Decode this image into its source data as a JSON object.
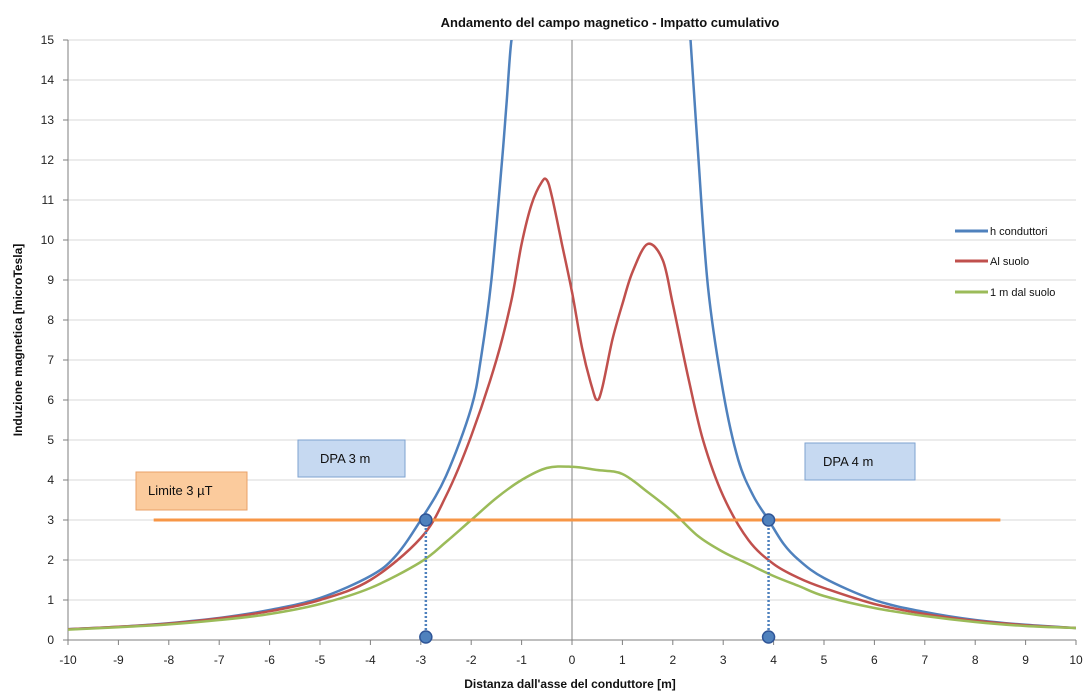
{
  "chart_data": {
    "type": "line",
    "title": "Andamento del campo magnetico  -  Impatto cumulativo",
    "xlabel": "Distanza dall'asse del conduttore [m]",
    "ylabel": "Induzione magnetica [microTesla]",
    "xlim": [
      -10,
      10
    ],
    "ylim": [
      0,
      15
    ],
    "xticks": [
      -10,
      -9,
      -8,
      -7,
      -6,
      -5,
      -4,
      -3,
      -2,
      -1,
      0,
      1,
      2,
      3,
      4,
      5,
      6,
      7,
      8,
      9,
      10
    ],
    "yticks": [
      0,
      1,
      2,
      3,
      4,
      5,
      6,
      7,
      8,
      9,
      10,
      11,
      12,
      13,
      14,
      15
    ],
    "grid": "horizontal",
    "legend_position": "right",
    "series": [
      {
        "name": "h conduttori",
        "color": "#4F81BD",
        "x": [
          -10,
          -9,
          -8,
          -7,
          -6,
          -5,
          -4,
          -3.5,
          -3,
          -2.5,
          -2,
          -1.8,
          -1.6,
          -1.4,
          -1.3,
          -1.2,
          -1.1,
          -1.0,
          -0.95,
          -0.9
        ],
        "y": [
          0.27,
          0.33,
          0.42,
          0.55,
          0.75,
          1.05,
          1.6,
          2.1,
          3.0,
          4.1,
          5.8,
          7.1,
          9.0,
          11.8,
          13.4,
          15.0,
          15.5,
          15.5,
          15.5,
          15.5
        ],
        "x2": [
          2.35,
          2.5,
          2.7,
          3.0,
          3.3,
          3.6,
          3.9,
          4.2,
          4.5,
          5,
          6,
          7,
          8,
          9,
          10
        ],
        "y2": [
          15.5,
          12.2,
          8.8,
          6.2,
          4.5,
          3.6,
          3.0,
          2.4,
          2.0,
          1.55,
          1.0,
          0.7,
          0.5,
          0.38,
          0.3
        ]
      },
      {
        "name": "Al suolo",
        "color": "#C0504D",
        "x": [
          -10,
          -9,
          -8,
          -7,
          -6,
          -5,
          -4,
          -3,
          -2.5,
          -2,
          -1.5,
          -1.2,
          -1,
          -0.8,
          -0.6,
          -0.5,
          -0.4,
          -0.2,
          0,
          0.2,
          0.4,
          0.5,
          0.6,
          0.8,
          1.0,
          1.2,
          1.5,
          1.8,
          2.0,
          2.3,
          2.6,
          3.0,
          3.5,
          4,
          4.5,
          5,
          6,
          7,
          8,
          9,
          10
        ],
        "y": [
          0.27,
          0.33,
          0.41,
          0.54,
          0.72,
          1.0,
          1.5,
          2.55,
          3.6,
          5.1,
          7.0,
          8.5,
          9.9,
          10.9,
          11.45,
          11.5,
          11.1,
          9.9,
          8.7,
          7.3,
          6.3,
          6.0,
          6.3,
          7.5,
          8.4,
          9.2,
          9.9,
          9.5,
          8.4,
          6.6,
          5.0,
          3.6,
          2.5,
          1.9,
          1.55,
          1.3,
          0.9,
          0.65,
          0.48,
          0.37,
          0.3
        ]
      },
      {
        "name": "1 m dal suolo",
        "color": "#9BBB59",
        "x": [
          -10,
          -9,
          -8,
          -7,
          -6,
          -5,
          -4,
          -3,
          -2.5,
          -2,
          -1.5,
          -1,
          -0.5,
          0,
          0.5,
          1,
          1.5,
          2,
          2.5,
          3,
          3.5,
          4,
          4.5,
          5,
          6,
          7,
          8,
          9,
          10
        ],
        "y": [
          0.26,
          0.32,
          0.39,
          0.5,
          0.65,
          0.9,
          1.3,
          1.95,
          2.45,
          3.0,
          3.55,
          4.0,
          4.3,
          4.33,
          4.25,
          4.15,
          3.7,
          3.2,
          2.6,
          2.2,
          1.9,
          1.6,
          1.35,
          1.1,
          0.8,
          0.6,
          0.45,
          0.35,
          0.3
        ]
      }
    ],
    "limit_line": {
      "label": "Limite 3 µT",
      "y": 3,
      "x_from": -8.3,
      "x_to": 8.5,
      "color": "#F79646"
    },
    "annotations": [
      {
        "label": "DPA 3  m",
        "x": -2.9,
        "y": 3.0
      },
      {
        "label": "DPA 4  m",
        "x": 3.9,
        "y": 3.0
      }
    ]
  }
}
